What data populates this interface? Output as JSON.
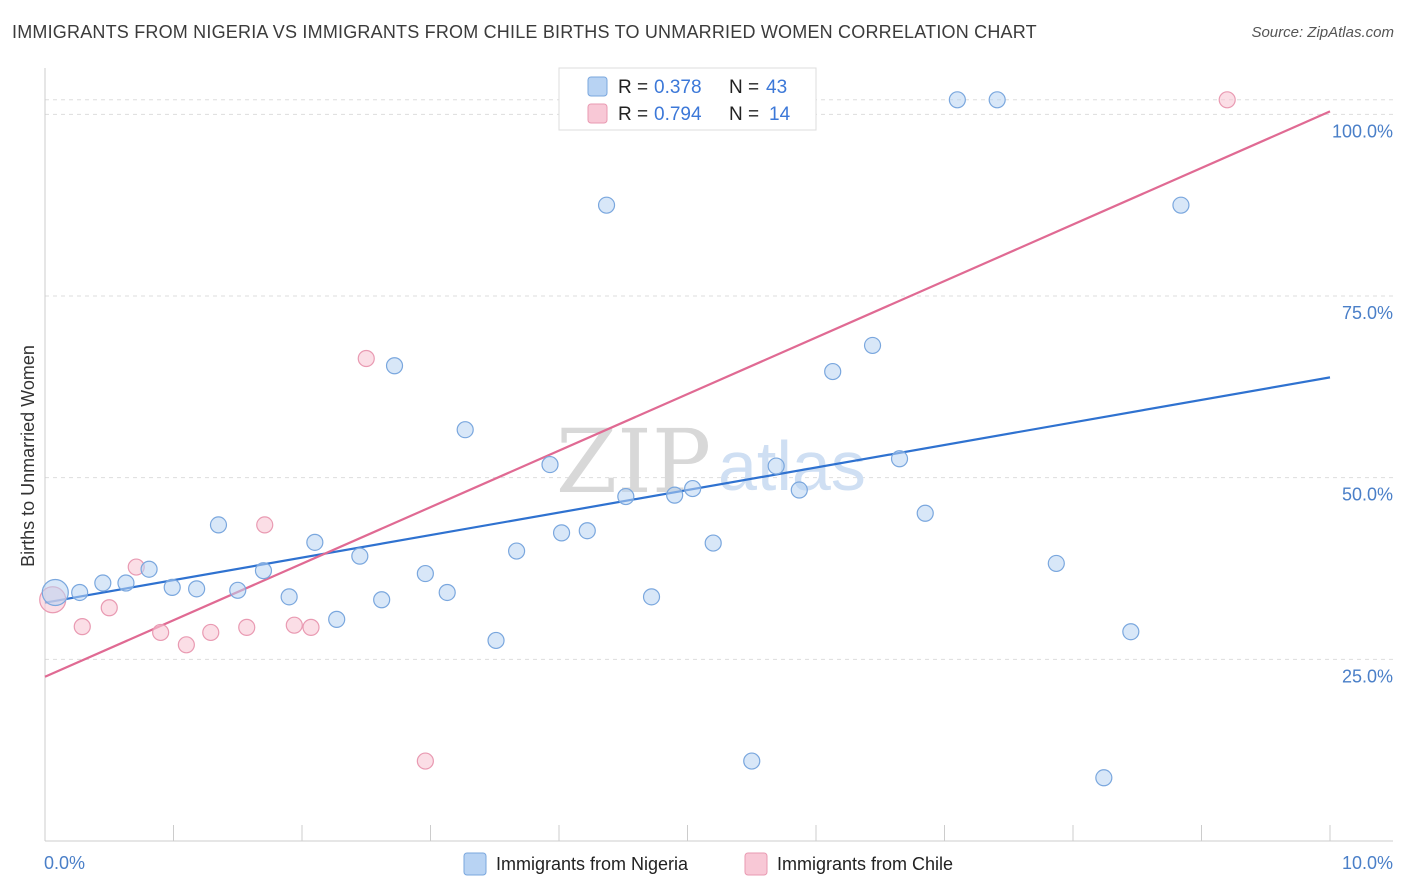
{
  "header": {
    "title": "IMMIGRANTS FROM NIGERIA VS IMMIGRANTS FROM CHILE BIRTHS TO UNMARRIED WOMEN CORRELATION CHART",
    "source": "Source: ZipAtlas.com"
  },
  "watermark": {
    "zip": "ZIP",
    "atlas": "atlas"
  },
  "colors": {
    "nigeria_fill": "#b8d3f3",
    "nigeria_stroke": "#7aa7de",
    "nigeria_line": "#2f72d0",
    "chile_fill": "#f8c8d6",
    "chile_stroke": "#e99ab2",
    "chile_line": "#e06a93",
    "grid": "#dddddd",
    "tick_label": "#4a7fc8"
  },
  "legend": {
    "items": [
      {
        "r_label": "R = ",
        "r_value": "0.378",
        "n_label": "N = ",
        "n_value": "43"
      },
      {
        "r_label": "R = ",
        "r_value": "0.794",
        "n_label": "N = ",
        "n_value": "14"
      }
    ]
  },
  "chart_data": {
    "type": "scatter",
    "title": "IMMIGRANTS FROM NIGERIA VS IMMIGRANTS FROM CHILE BIRTHS TO UNMARRIED WOMEN CORRELATION CHART",
    "xlabel": "",
    "ylabel": "Births to Unmarried Women",
    "xlim": [
      0,
      10
    ],
    "ylim": [
      0,
      105
    ],
    "x_tick_labels": {
      "min": "0.0%",
      "max": "10.0%"
    },
    "y_ticks": [
      25,
      50,
      75,
      100
    ],
    "y_tick_labels": [
      "25.0%",
      "50.0%",
      "75.0%",
      "100.0%"
    ],
    "grid": true,
    "legend_position": "top-center",
    "series": [
      {
        "name": "Immigrants from Nigeria",
        "r": 0.378,
        "n": 43,
        "trend": {
          "x": [
            0,
            10
          ],
          "y": [
            32.8,
            63.8
          ]
        },
        "points": [
          {
            "x": 0.08,
            "y": 34.2,
            "big": true
          },
          {
            "x": 0.27,
            "y": 34.2
          },
          {
            "x": 0.45,
            "y": 35.5
          },
          {
            "x": 0.63,
            "y": 35.5
          },
          {
            "x": 0.81,
            "y": 37.4
          },
          {
            "x": 0.99,
            "y": 34.9
          },
          {
            "x": 1.18,
            "y": 34.7
          },
          {
            "x": 1.35,
            "y": 43.5
          },
          {
            "x": 1.5,
            "y": 34.5
          },
          {
            "x": 1.7,
            "y": 37.2
          },
          {
            "x": 1.9,
            "y": 33.6
          },
          {
            "x": 2.1,
            "y": 41.1
          },
          {
            "x": 2.27,
            "y": 30.5
          },
          {
            "x": 2.45,
            "y": 39.2
          },
          {
            "x": 2.62,
            "y": 33.2
          },
          {
            "x": 2.72,
            "y": 65.4
          },
          {
            "x": 2.96,
            "y": 36.8
          },
          {
            "x": 3.13,
            "y": 34.2
          },
          {
            "x": 3.27,
            "y": 56.6
          },
          {
            "x": 3.51,
            "y": 27.6
          },
          {
            "x": 3.67,
            "y": 39.9
          },
          {
            "x": 3.93,
            "y": 51.8
          },
          {
            "x": 4.02,
            "y": 42.4
          },
          {
            "x": 4.22,
            "y": 42.7
          },
          {
            "x": 4.37,
            "y": 87.5
          },
          {
            "x": 4.52,
            "y": 47.4
          },
          {
            "x": 4.72,
            "y": 33.6
          },
          {
            "x": 4.9,
            "y": 47.6
          },
          {
            "x": 5.04,
            "y": 48.5
          },
          {
            "x": 5.2,
            "y": 41.0
          },
          {
            "x": 5.5,
            "y": 11.0
          },
          {
            "x": 5.69,
            "y": 51.6
          },
          {
            "x": 5.87,
            "y": 48.3
          },
          {
            "x": 6.13,
            "y": 64.6
          },
          {
            "x": 6.44,
            "y": 68.2
          },
          {
            "x": 6.65,
            "y": 52.6
          },
          {
            "x": 6.85,
            "y": 45.1
          },
          {
            "x": 7.1,
            "y": 102.0
          },
          {
            "x": 7.41,
            "y": 102.0
          },
          {
            "x": 7.87,
            "y": 38.2
          },
          {
            "x": 8.24,
            "y": 8.7
          },
          {
            "x": 8.45,
            "y": 28.8
          },
          {
            "x": 8.84,
            "y": 87.5
          }
        ]
      },
      {
        "name": "Immigrants from Chile",
        "r": 0.794,
        "n": 14,
        "trend": {
          "x": [
            0,
            10
          ],
          "y": [
            22.6,
            100.4
          ]
        },
        "points": [
          {
            "x": 0.06,
            "y": 33.2,
            "big": true
          },
          {
            "x": 0.29,
            "y": 29.5
          },
          {
            "x": 0.5,
            "y": 32.1
          },
          {
            "x": 0.71,
            "y": 37.7
          },
          {
            "x": 0.9,
            "y": 28.7
          },
          {
            "x": 1.1,
            "y": 27.0
          },
          {
            "x": 1.29,
            "y": 28.7
          },
          {
            "x": 1.57,
            "y": 29.4
          },
          {
            "x": 1.71,
            "y": 43.5
          },
          {
            "x": 1.94,
            "y": 29.7
          },
          {
            "x": 2.07,
            "y": 29.4
          },
          {
            "x": 2.5,
            "y": 66.4
          },
          {
            "x": 2.96,
            "y": 11.0
          },
          {
            "x": 9.2,
            "y": 102.0
          }
        ]
      }
    ]
  }
}
